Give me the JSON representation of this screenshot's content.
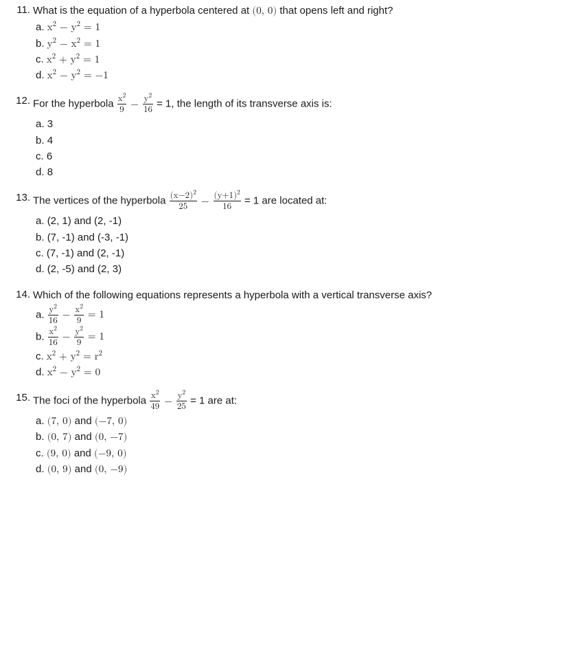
{
  "questions": [
    {
      "number": "11.",
      "stem_pre": "What is the equation of a hyperbola centered at ",
      "stem_math": "(0, 0)",
      "stem_post": " that opens left and right?",
      "choices": [
        {
          "letter": "a.",
          "pre": "",
          "frac": null,
          "rhs": "x<sup>2</sup> − y<sup>2</sup> = 1"
        },
        {
          "letter": "b.",
          "pre": "",
          "frac": null,
          "rhs": "y<sup>2</sup> − x<sup>2</sup> = 1"
        },
        {
          "letter": "c.",
          "pre": "",
          "frac": null,
          "rhs": "x<sup>2</sup> + y<sup>2</sup> = 1"
        },
        {
          "letter": "d.",
          "pre": "",
          "frac": null,
          "rhs": "x<sup>2</sup> − y<sup>2</sup> = −1"
        }
      ]
    },
    {
      "number": "12.",
      "stem_pre": "For the hyperbola ",
      "stem_frac1": {
        "num": "x<sup>2</sup>",
        "den": "9"
      },
      "stem_mid": " − ",
      "stem_frac2": {
        "num": "y<sup>2</sup>",
        "den": "16"
      },
      "stem_post2": " = 1, the length of its transverse axis is:",
      "choices": [
        {
          "letter": "a.",
          "text": "3"
        },
        {
          "letter": "b.",
          "text": "4"
        },
        {
          "letter": "c.",
          "text": "6"
        },
        {
          "letter": "d.",
          "text": "8"
        }
      ]
    },
    {
      "number": "13.",
      "stem_pre": "The vertices of the hyperbola ",
      "stem_frac1": {
        "num": "(x−2)<sup>2</sup>",
        "den": "25"
      },
      "stem_mid": " − ",
      "stem_frac2": {
        "num": "(y+1)<sup>2</sup>",
        "den": "16"
      },
      "stem_post2": " = 1 are located at:",
      "choices": [
        {
          "letter": "a.",
          "text": "(2, 1) and (2, -1)"
        },
        {
          "letter": "b.",
          "text": "(7, -1) and (-3, -1)"
        },
        {
          "letter": "c.",
          "text": "(7, -1) and (2, -1)"
        },
        {
          "letter": "d.",
          "text": "(2, -5) and (2, 3)"
        }
      ]
    },
    {
      "number": "14.",
      "stem_pre": "Which of the following equations represents a hyperbola with a vertical transverse axis?",
      "choices": [
        {
          "letter": "a.",
          "a_num": "y<sup>2</sup>",
          "a_den": "16",
          "b_num": "x<sup>2</sup>",
          "b_den": "9",
          "op": " − ",
          "rhs": " = 1"
        },
        {
          "letter": "b.",
          "a_num": "x<sup>2</sup>",
          "a_den": "16",
          "b_num": "y<sup>2</sup>",
          "b_den": "9",
          "op": " − ",
          "rhs": " = 1"
        },
        {
          "letter": "c.",
          "plain": "x<sup>2</sup> + y<sup>2</sup> = r<sup>2</sup>"
        },
        {
          "letter": "d.",
          "plain": "x<sup>2</sup> − y<sup>2</sup> = 0"
        }
      ]
    },
    {
      "number": "15.",
      "stem_pre": "The foci of the hyperbola ",
      "stem_frac1": {
        "num": "x<sup>2</sup>",
        "den": "49"
      },
      "stem_mid": " − ",
      "stem_frac2": {
        "num": "y<sup>2</sup>",
        "den": "25"
      },
      "stem_post2": " = 1 are at:",
      "choices": [
        {
          "letter": "a.",
          "math": "(7, 0)",
          "join": " and ",
          "math2": "(−7, 0)"
        },
        {
          "letter": "b.",
          "math": "(0, 7)",
          "join": " and ",
          "math2": "(0, −7)"
        },
        {
          "letter": "c.",
          "math": "(9, 0)",
          "join": " and ",
          "math2": "(−9, 0)"
        },
        {
          "letter": "d.",
          "math": "(0, 9)",
          "join": " and ",
          "math2": "(0, −9)"
        }
      ]
    }
  ]
}
